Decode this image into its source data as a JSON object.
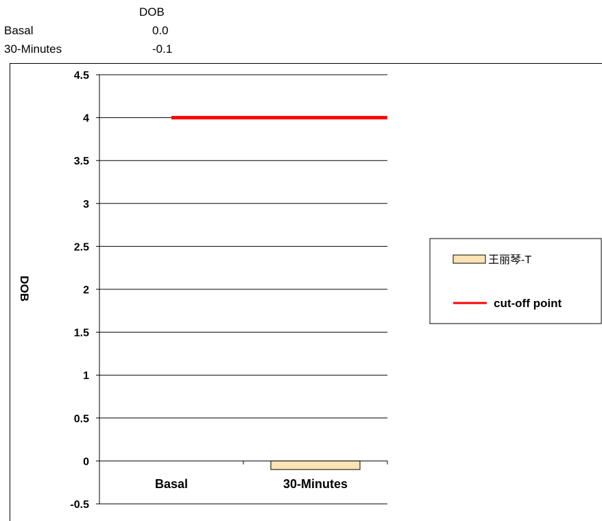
{
  "data_table": {
    "header": "DOB",
    "rows": [
      {
        "label": "Basal",
        "value": "0.0"
      },
      {
        "label": "30-Minutes",
        "value": "-0.1"
      }
    ]
  },
  "chart_data": {
    "type": "bar",
    "ylabel": "DOB",
    "xlabel": "",
    "categories": [
      "Basal",
      "30-Minutes"
    ],
    "series": [
      {
        "name": "王丽琴-T",
        "values": [
          0.0,
          -0.1
        ],
        "color": "#fbe3b5"
      }
    ],
    "reference_line": {
      "name": "cut-off point",
      "value": 4,
      "color": "#ff0000"
    },
    "ylim": [
      -0.5,
      4.5
    ],
    "yticks": [
      "4.5",
      "4",
      "3.5",
      "3",
      "2.5",
      "2",
      "1.5",
      "1",
      "0.5",
      "0",
      "-0.5"
    ],
    "grid": true,
    "legend": "right"
  }
}
